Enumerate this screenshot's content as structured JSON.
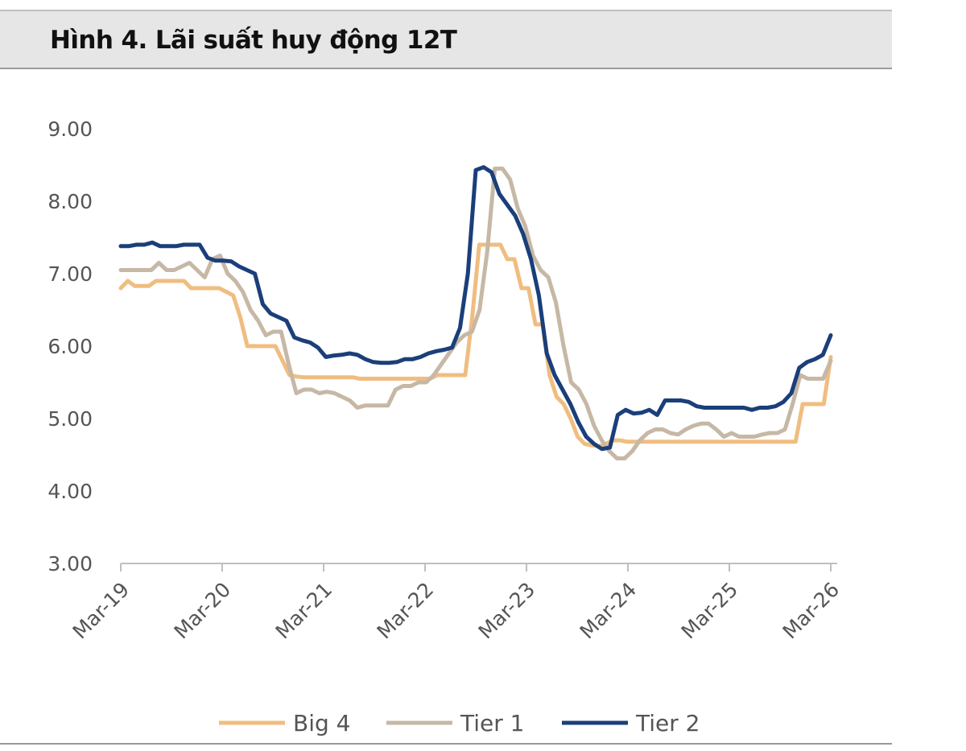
{
  "header": {
    "title": "Hình 4. Lãi suất huy động 12T"
  },
  "chart_data": {
    "type": "line",
    "title": "Hình 4. Lãi suất huy động 12T",
    "xlabel": "",
    "ylabel": "",
    "ylim": [
      3,
      9
    ],
    "yticks": [
      "9.00",
      "8.00",
      "7.00",
      "6.00",
      "5.00",
      "4.00",
      "3.00"
    ],
    "xticks": [
      "Mar-19",
      "Mar-20",
      "Mar-21",
      "Mar-22",
      "Mar-23",
      "Mar-24",
      "Mar-25",
      "Mar-26"
    ],
    "x_start": "2019-03",
    "x_interval": "month",
    "grid": false,
    "legend_position": "bottom",
    "series": [
      {
        "name": "Big 4",
        "color": "#f0bd80",
        "values": [
          6.8,
          6.9,
          6.83,
          6.83,
          6.83,
          6.9,
          6.9,
          6.9,
          6.9,
          6.9,
          6.8,
          6.8,
          6.8,
          6.8,
          6.8,
          6.75,
          6.7,
          6.4,
          6.0,
          6.0,
          6.0,
          6.0,
          6.0,
          5.8,
          5.6,
          5.58,
          5.57,
          5.57,
          5.57,
          5.57,
          5.57,
          5.57,
          5.57,
          5.57,
          5.55,
          5.55,
          5.55,
          5.55,
          5.55,
          5.55,
          5.55,
          5.55,
          5.55,
          5.55,
          5.55,
          5.6,
          5.6,
          5.6,
          5.6,
          5.6,
          6.4,
          7.4,
          7.4,
          7.4,
          7.4,
          7.2,
          7.2,
          6.8,
          6.8,
          6.3,
          6.3,
          5.6,
          5.3,
          5.2,
          5.0,
          4.75,
          4.65,
          4.63,
          4.62,
          4.65,
          4.7,
          4.7,
          4.68,
          4.68,
          4.68,
          4.68,
          4.68,
          4.68,
          4.68,
          4.68,
          4.68,
          4.68,
          4.68,
          4.68,
          4.68,
          4.68,
          4.68,
          4.68,
          4.68,
          4.68,
          4.68,
          4.68,
          4.68,
          4.68,
          4.68,
          4.68,
          4.68,
          5.2,
          5.2,
          5.2,
          5.2,
          5.85
        ]
      },
      {
        "name": "Tier 1",
        "color": "#c6b8a5",
        "values": [
          7.05,
          7.05,
          7.05,
          7.05,
          7.05,
          7.15,
          7.05,
          7.05,
          7.1,
          7.15,
          7.05,
          6.95,
          7.2,
          7.25,
          7.0,
          6.9,
          6.75,
          6.5,
          6.35,
          6.15,
          6.2,
          6.2,
          5.75,
          5.35,
          5.4,
          5.4,
          5.35,
          5.37,
          5.35,
          5.3,
          5.25,
          5.15,
          5.18,
          5.18,
          5.18,
          5.18,
          5.4,
          5.45,
          5.45,
          5.5,
          5.5,
          5.6,
          5.75,
          5.9,
          6.05,
          6.15,
          6.2,
          6.5,
          7.3,
          8.45,
          8.45,
          8.3,
          7.9,
          7.65,
          7.25,
          7.05,
          6.95,
          6.6,
          6.0,
          5.5,
          5.4,
          5.2,
          4.9,
          4.7,
          4.55,
          4.45,
          4.45,
          4.55,
          4.7,
          4.8,
          4.85,
          4.85,
          4.8,
          4.78,
          4.85,
          4.9,
          4.93,
          4.93,
          4.85,
          4.75,
          4.8,
          4.75,
          4.75,
          4.75,
          4.78,
          4.8,
          4.8,
          4.85,
          5.2,
          5.6,
          5.55,
          5.55,
          5.55,
          5.8
        ]
      },
      {
        "name": "Tier 2",
        "color": "#1a3f7a",
        "values": [
          7.38,
          7.38,
          7.4,
          7.4,
          7.43,
          7.38,
          7.38,
          7.38,
          7.4,
          7.4,
          7.4,
          7.22,
          7.18,
          7.18,
          7.17,
          7.1,
          7.05,
          7.0,
          6.58,
          6.45,
          6.4,
          6.35,
          6.12,
          6.08,
          6.05,
          5.98,
          5.85,
          5.87,
          5.88,
          5.9,
          5.88,
          5.82,
          5.78,
          5.77,
          5.77,
          5.78,
          5.82,
          5.82,
          5.85,
          5.9,
          5.93,
          5.95,
          5.98,
          6.25,
          7.0,
          8.43,
          8.47,
          8.4,
          8.1,
          7.95,
          7.8,
          7.55,
          7.2,
          6.7,
          5.9,
          5.6,
          5.4,
          5.2,
          4.95,
          4.75,
          4.65,
          4.58,
          4.6,
          5.05,
          5.12,
          5.07,
          5.08,
          5.12,
          5.05,
          5.25,
          5.25,
          5.25,
          5.23,
          5.17,
          5.15,
          5.15,
          5.15,
          5.15,
          5.15,
          5.15,
          5.12,
          5.15,
          5.15,
          5.17,
          5.23,
          5.35,
          5.7,
          5.78,
          5.82,
          5.88,
          6.15
        ]
      }
    ]
  }
}
